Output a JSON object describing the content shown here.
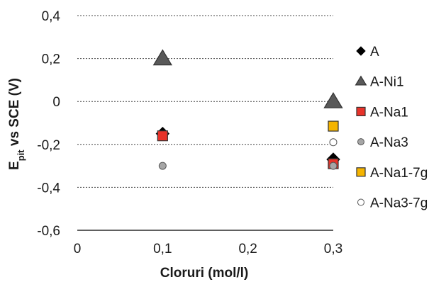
{
  "chart_data": {
    "type": "scatter",
    "xlabel": "Cloruri (mol/l)",
    "ylabel": {
      "main": "E",
      "sub": "pit",
      "rest": " vs SCE (V)"
    },
    "xlim": [
      0,
      0.3
    ],
    "ylim": [
      -0.6,
      0.4
    ],
    "x_ticks": [
      "0",
      "0,1",
      "0,2",
      "0,3"
    ],
    "x_tick_values": [
      0,
      0.1,
      0.2,
      0.3
    ],
    "y_ticks": [
      "0,4",
      "0,2",
      "0",
      "-0,2",
      "-0,4",
      "-0,6"
    ],
    "y_tick_values": [
      0.4,
      0.2,
      0,
      -0.2,
      -0.4,
      -0.6
    ],
    "grid": "horizontal dotted",
    "legend_position": "right",
    "series": [
      {
        "name": "A",
        "marker": "diamond",
        "color": "#000000",
        "points": [
          [
            0.1,
            -0.15
          ],
          [
            0.3,
            -0.27
          ]
        ]
      },
      {
        "name": "A-Ni1",
        "marker": "triangle",
        "color": "#595959",
        "points": [
          [
            0.1,
            0.2
          ],
          [
            0.3,
            0.0
          ]
        ]
      },
      {
        "name": "A-Na1",
        "marker": "square",
        "color": "#e8332a",
        "points": [
          [
            0.1,
            -0.16
          ],
          [
            0.3,
            -0.29
          ]
        ]
      },
      {
        "name": "A-Na3",
        "marker": "circle",
        "color": "#a6a6a6",
        "points": [
          [
            0.1,
            -0.3
          ],
          [
            0.3,
            -0.3
          ]
        ]
      },
      {
        "name": "A-Na1-7g",
        "marker": "square",
        "color": "#f5b400",
        "points": [
          [
            0.3,
            -0.115
          ]
        ]
      },
      {
        "name": "A-Na3-7g",
        "marker": "circle",
        "color": "#ffffff",
        "points": [
          [
            0.3,
            -0.19
          ]
        ]
      }
    ]
  }
}
